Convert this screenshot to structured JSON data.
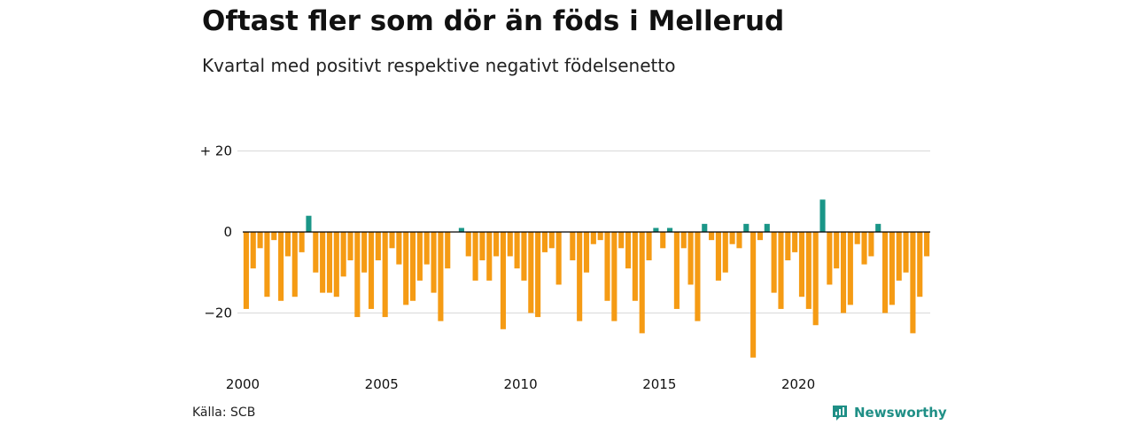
{
  "title": "Oftast fler som dör än föds i Mellerud",
  "subtitle": "Kvartal med positivt respektive negativt födelsenetto",
  "source": "Källa: SCB",
  "brand": {
    "name": "Newsworthy",
    "icon": "newsworthy-logo-icon"
  },
  "colors": {
    "positive": "#1a9688",
    "negative": "#f59b14",
    "grid": "#d9d9d9",
    "zero_line": "#000000"
  },
  "chart_data": {
    "type": "bar",
    "x_unit": "quarter",
    "x_start": "2000 Q1",
    "y_ticks": [
      20,
      0,
      -20
    ],
    "y_tick_labels": [
      "+ 20",
      "0",
      "−20"
    ],
    "x_ticks": [
      "2000",
      "2005",
      "2010",
      "2015",
      "2020"
    ],
    "ylim": [
      -31,
      20
    ],
    "grid": true,
    "values": [
      -19,
      -9,
      -4,
      -16,
      -2,
      -17,
      -6,
      -16,
      -5,
      4,
      -10,
      -15,
      -15,
      -16,
      -11,
      -7,
      -21,
      -10,
      -19,
      -7,
      -21,
      -4,
      -8,
      -18,
      -17,
      -12,
      -8,
      -15,
      -22,
      -9,
      0,
      1,
      -6,
      -12,
      -7,
      -12,
      -6,
      -24,
      -6,
      -9,
      -12,
      -20,
      -21,
      -5,
      -4,
      -13,
      0,
      -7,
      -22,
      -10,
      -3,
      -2,
      -17,
      -22,
      -4,
      -9,
      -17,
      -25,
      -7,
      1,
      -4,
      1,
      -19,
      -4,
      -13,
      -22,
      2,
      -2,
      -12,
      -10,
      -3,
      -4,
      2,
      -31,
      -2,
      2,
      -15,
      -19,
      -7,
      -5,
      -16,
      -19,
      -23,
      8,
      -13,
      -9,
      -20,
      -18,
      -3,
      -8,
      -6,
      2,
      -20,
      -18,
      -12,
      -10,
      -25,
      -16,
      -6
    ]
  }
}
